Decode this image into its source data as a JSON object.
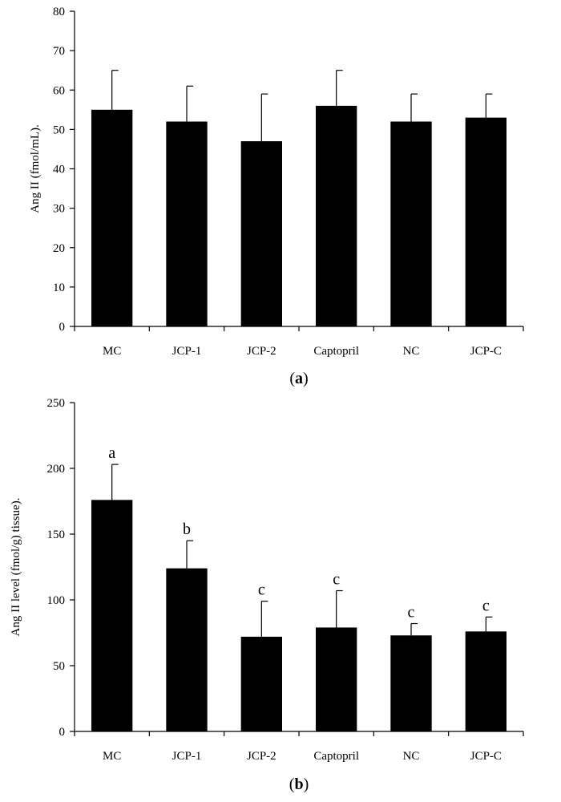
{
  "chart_data": [
    {
      "type": "bar",
      "panel": "a",
      "panel_label_text": "a",
      "title": "",
      "xlabel": "",
      "ylabel": "Ang II (fmol/mL).",
      "categories": [
        "MC",
        "JCP-1",
        "JCP-2",
        "Captopril",
        "NC",
        "JCP-C"
      ],
      "values": [
        55,
        52,
        47,
        56,
        52,
        53
      ],
      "errors": [
        10,
        9,
        12,
        9,
        7,
        6
      ],
      "significance": [],
      "ylim": [
        0,
        80
      ],
      "yticks": [
        0,
        10,
        20,
        30,
        40,
        50,
        60,
        70,
        80
      ],
      "grid": false,
      "bar_color": "#000000"
    },
    {
      "type": "bar",
      "panel": "b",
      "panel_label_text": "b",
      "title": "",
      "xlabel": "",
      "ylabel": "Ang II level (fmol/g) tissue).",
      "categories": [
        "MC",
        "JCP-1",
        "JCP-2",
        "Captopril",
        "NC",
        "JCP-C"
      ],
      "values": [
        176,
        124,
        72,
        79,
        73,
        76
      ],
      "errors": [
        27,
        21,
        27,
        28,
        9,
        11
      ],
      "significance": [
        "a",
        "b",
        "c",
        "c",
        "c",
        "c"
      ],
      "ylim": [
        0,
        250
      ],
      "yticks": [
        0,
        50,
        100,
        150,
        200,
        250
      ],
      "grid": false,
      "bar_color": "#000000"
    }
  ]
}
